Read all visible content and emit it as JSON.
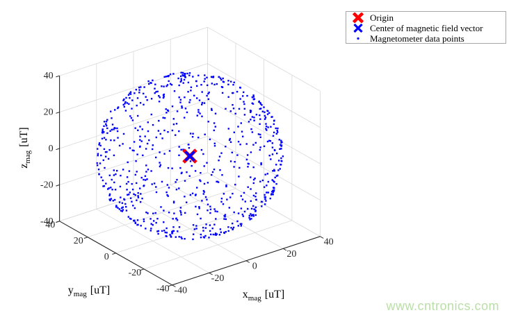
{
  "figure": {
    "background": "#ffffff",
    "watermark": {
      "text": "www.cntronics.com",
      "color": "#b9dfa6"
    }
  },
  "legend": {
    "border_color": "#a6a6a6",
    "background": "#ffffff",
    "position": "top-right",
    "items": [
      {
        "label": "Origin",
        "marker": "x",
        "color": "#ff0000",
        "linewidth": 4.6
      },
      {
        "label": "Center of magnetic field vector",
        "marker": "x",
        "color": "#0000ff",
        "linewidth": 3.2
      },
      {
        "label": "Magnetometer data points",
        "marker": "dot",
        "color": "#0000ff",
        "linewidth": 1
      }
    ]
  },
  "chart_data": {
    "type": "scatter",
    "projection": "3d",
    "view": {
      "azimuth_deg": -37.5,
      "elevation_deg": 30
    },
    "grid": true,
    "grid_color": "#d9d9d9",
    "axis_color": "#262626",
    "axes": {
      "x": {
        "label": {
          "main": "x",
          "sub": "mag",
          "unit": "[uT]"
        },
        "lim": [
          -40,
          40
        ],
        "ticks": [
          -40,
          -20,
          0,
          20,
          40
        ]
      },
      "y": {
        "label": {
          "main": "y",
          "sub": "mag",
          "unit": "[uT]"
        },
        "lim": [
          -40,
          40
        ],
        "ticks": [
          -40,
          -20,
          0,
          20,
          40
        ]
      },
      "z": {
        "label": {
          "main": "z",
          "sub": "mag",
          "unit": "[uT]"
        },
        "lim": [
          -40,
          40
        ],
        "ticks": [
          -40,
          -20,
          0,
          20,
          40
        ]
      }
    },
    "series": [
      {
        "name": "Origin",
        "marker": "x",
        "color": "#ff0000",
        "size": 9,
        "linewidth": 5,
        "points": [
          [
            0,
            0,
            0
          ]
        ]
      },
      {
        "name": "Center of magnetic field vector",
        "marker": "x",
        "color": "#0000ff",
        "size": 6.5,
        "linewidth": 3.6,
        "points": [
          [
            0,
            0,
            0
          ]
        ]
      },
      {
        "name": "Magnetometer data points",
        "marker": "point",
        "color": "#0000ff",
        "size": 2.4,
        "distribution": {
          "shape": "sphere_surface",
          "center_uT": [
            0,
            0,
            0
          ],
          "radius_uT": 40,
          "count": 800,
          "seed": 20
        }
      }
    ]
  }
}
